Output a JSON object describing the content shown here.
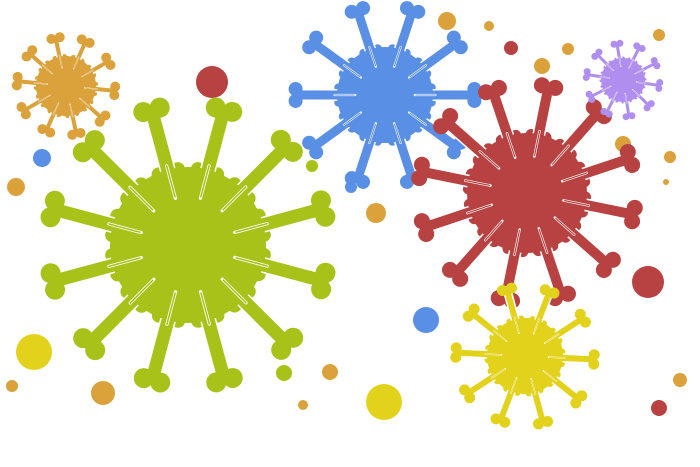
{
  "illustration": {
    "subject": "coronavirus-particles",
    "palette": {
      "orange": "#dba13a",
      "lime": "#a8c219",
      "blue": "#5a8fe6",
      "red": "#b84242",
      "lavender": "#b08ef0",
      "yellow": "#e3d21c"
    },
    "viruses": [
      {
        "name": "orange-virus",
        "color": "orange",
        "spikes": 10
      },
      {
        "name": "lime-virus",
        "color": "lime",
        "spikes": 12
      },
      {
        "name": "blue-virus",
        "color": "blue",
        "spikes": 10
      },
      {
        "name": "red-virus",
        "color": "red",
        "spikes": 12
      },
      {
        "name": "lavender-virus",
        "color": "lavender",
        "spikes": 10
      },
      {
        "name": "yellow-virus",
        "color": "yellow",
        "spikes": 10
      }
    ],
    "dot_colors": [
      "red",
      "blue",
      "orange",
      "yellow",
      "lime"
    ]
  }
}
